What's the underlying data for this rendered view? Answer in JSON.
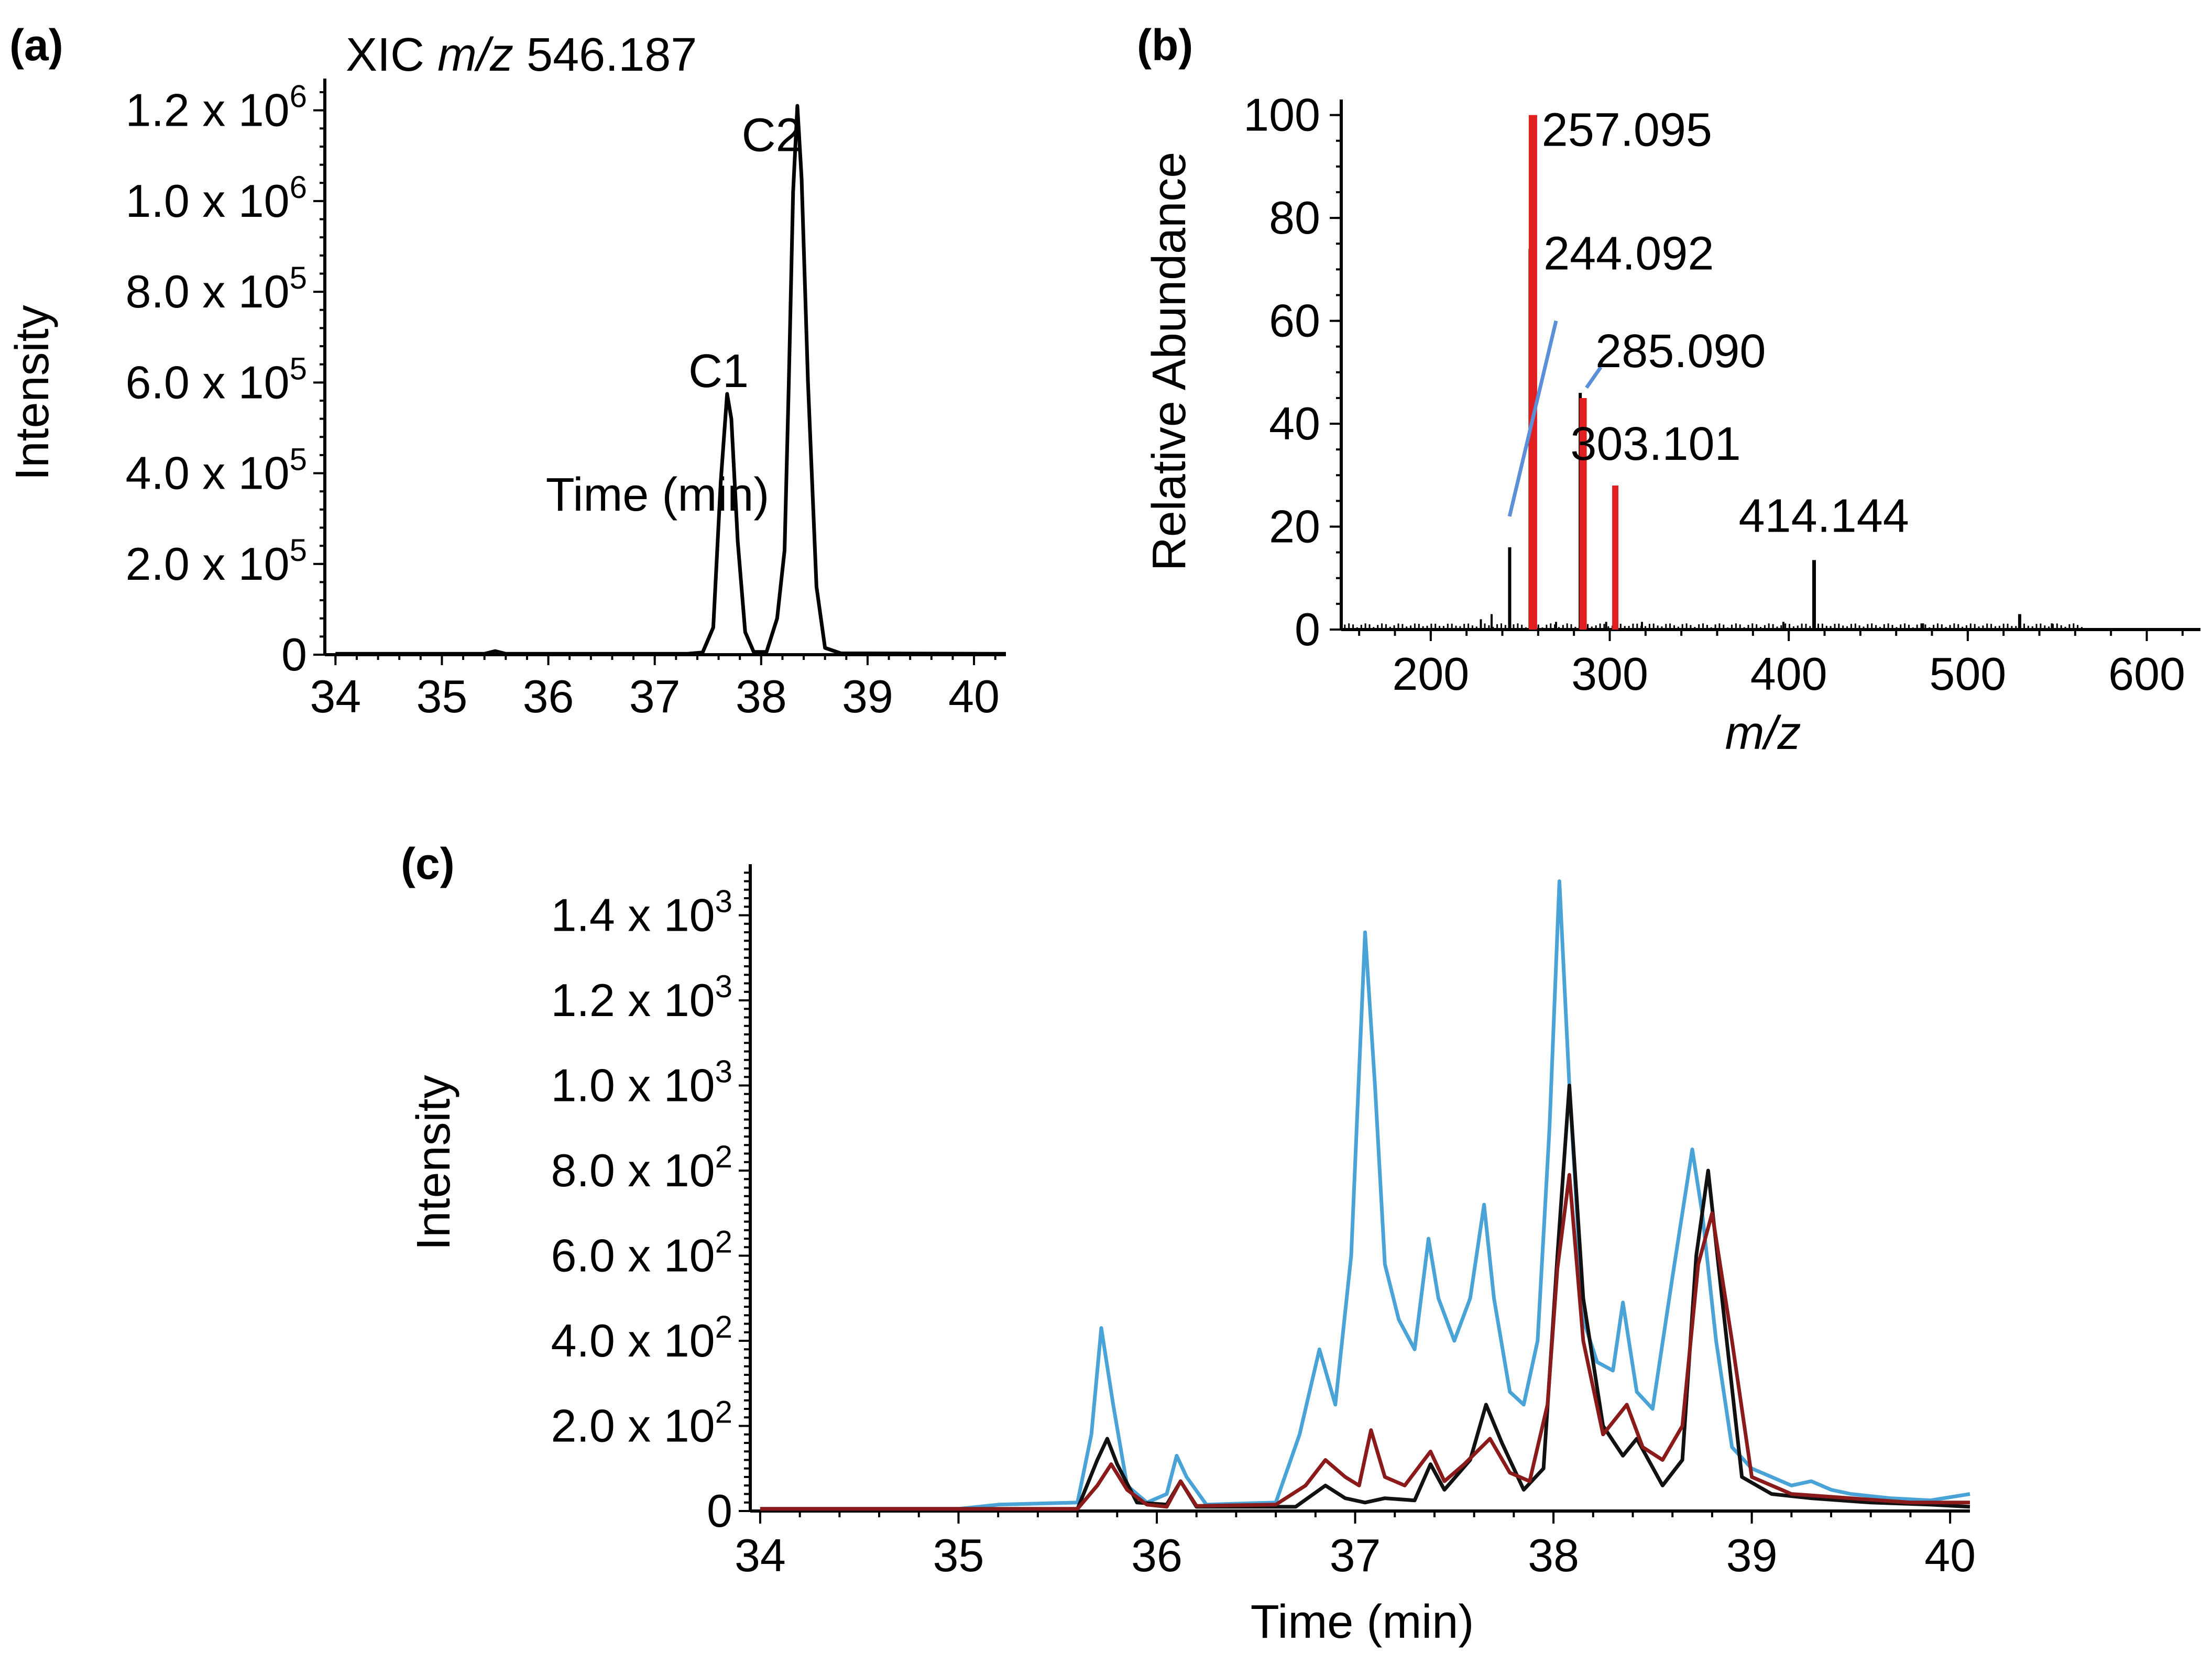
{
  "figure": {
    "colors": {
      "axis": "#000000",
      "red_peak": "#e02020",
      "blue_line": "#5b8fd8",
      "trace_blue": "#4aa3d6",
      "trace_black": "#111111",
      "trace_red": "#8b1a1a"
    }
  },
  "chart_data": [
    {
      "panel": "(a)",
      "type": "line",
      "title": "XIC m/z 546.187",
      "title_parts": {
        "prefix": "XIC ",
        "italic": "m/z",
        "suffix": " 546.187"
      },
      "xlabel": "Time (min)",
      "ylabel": "Intensity",
      "xlim": [
        33.9,
        40.3
      ],
      "ylim": [
        0,
        1270000
      ],
      "xticks": [
        34,
        35,
        36,
        37,
        38,
        39,
        40
      ],
      "yticks": [
        {
          "value": 0,
          "mant": "0",
          "exp": ""
        },
        {
          "value": 200000,
          "mant": "2.0 x 10",
          "exp": "5"
        },
        {
          "value": 400000,
          "mant": "4.0 x 10",
          "exp": "5"
        },
        {
          "value": 600000,
          "mant": "6.0 x 10",
          "exp": "5"
        },
        {
          "value": 800000,
          "mant": "8.0 x 10",
          "exp": "5"
        },
        {
          "value": 1000000,
          "mant": "1.0 x 10",
          "exp": "6"
        },
        {
          "value": 1200000,
          "mant": "1.2 x 10",
          "exp": "6"
        }
      ],
      "series": [
        {
          "name": "XIC",
          "color": "#000000",
          "x": [
            34.0,
            35.4,
            35.5,
            35.6,
            37.3,
            37.45,
            37.55,
            37.62,
            37.68,
            37.72,
            37.78,
            37.85,
            37.93,
            38.05,
            38.15,
            38.22,
            38.26,
            38.3,
            38.34,
            38.38,
            38.44,
            38.52,
            38.6,
            38.75,
            40.3
          ],
          "y": [
            2000,
            2000,
            8000,
            2000,
            2000,
            5000,
            60000,
            380000,
            575000,
            520000,
            250000,
            50000,
            6000,
            6000,
            80000,
            230000,
            600000,
            1020000,
            1210000,
            1050000,
            600000,
            150000,
            15000,
            3000,
            2000
          ]
        }
      ],
      "annotations": [
        {
          "text": "C1",
          "x": 37.6,
          "y": 590000
        },
        {
          "text": "C2",
          "x": 38.1,
          "y": 1110000
        }
      ]
    },
    {
      "panel": "(b)",
      "type": "bar",
      "xlabel": "m/z",
      "ylabel": "Relative Abundance",
      "xlim": [
        150,
        630
      ],
      "ylim": [
        0,
        102
      ],
      "xticks": [
        200,
        300,
        400,
        500,
        600
      ],
      "yticks": [
        0,
        20,
        40,
        60,
        80,
        100
      ],
      "peaks": [
        {
          "mz": 244.092,
          "intensity": 16,
          "color": "black",
          "width": 6
        },
        {
          "mz": 255.5,
          "intensity": 74,
          "color": "black",
          "width": 6
        },
        {
          "mz": 257.095,
          "intensity": 100,
          "color": "red",
          "width": 16
        },
        {
          "mz": 283.5,
          "intensity": 46,
          "color": "black",
          "width": 6
        },
        {
          "mz": 285.09,
          "intensity": 45,
          "color": "red",
          "width": 14
        },
        {
          "mz": 303.101,
          "intensity": 28,
          "color": "red",
          "width": 12
        },
        {
          "mz": 414.144,
          "intensity": 13.5,
          "color": "black",
          "width": 7
        },
        {
          "mz": 529,
          "intensity": 3,
          "color": "black",
          "width": 6
        },
        {
          "mz": 228,
          "intensity": 2,
          "color": "black",
          "width": 4
        },
        {
          "mz": 234,
          "intensity": 3,
          "color": "black",
          "width": 4
        },
        {
          "mz": 270,
          "intensity": 1.5,
          "color": "black",
          "width": 4
        },
        {
          "mz": 298,
          "intensity": 1.5,
          "color": "black",
          "width": 4
        },
        {
          "mz": 318,
          "intensity": 1.5,
          "color": "black",
          "width": 4
        },
        {
          "mz": 397,
          "intensity": 1.5,
          "color": "black",
          "width": 4
        },
        {
          "mz": 475,
          "intensity": 1.2,
          "color": "black",
          "width": 4
        },
        {
          "mz": 547,
          "intensity": 1.2,
          "color": "black",
          "width": 4
        }
      ],
      "labels": [
        {
          "text": "257.095",
          "mz": 262,
          "y": 94
        },
        {
          "text": "244.092",
          "mz": 263,
          "y": 70
        },
        {
          "text": "285.090",
          "mz": 292,
          "y": 51
        },
        {
          "text": "303.101",
          "mz": 278,
          "y": 33
        },
        {
          "text": "414.144",
          "mz": 372,
          "y": 19
        }
      ],
      "guide_lines": [
        {
          "from": [
            244,
            22
          ],
          "to": [
            270,
            60
          ]
        },
        {
          "from": [
            287,
            47
          ],
          "to": [
            295,
            51
          ]
        }
      ]
    },
    {
      "panel": "(c)",
      "type": "line",
      "xlabel": "Time (min)",
      "ylabel": "Intensity",
      "xlim": [
        33.95,
        40.1
      ],
      "ylim": [
        0,
        1520
      ],
      "xticks": [
        34,
        35,
        36,
        37,
        38,
        39,
        40
      ],
      "yticks": [
        {
          "value": 0,
          "mant": "0",
          "exp": ""
        },
        {
          "value": 200,
          "mant": "2.0 x 10",
          "exp": "2"
        },
        {
          "value": 400,
          "mant": "4.0 x 10",
          "exp": "2"
        },
        {
          "value": 600,
          "mant": "6.0 x 10",
          "exp": "2"
        },
        {
          "value": 800,
          "mant": "8.0 x 10",
          "exp": "2"
        },
        {
          "value": 1000,
          "mant": "1.0 x 10",
          "exp": "3"
        },
        {
          "value": 1200,
          "mant": "1.2 x 10",
          "exp": "3"
        },
        {
          "value": 1400,
          "mant": "1.4 x 10",
          "exp": "3"
        }
      ],
      "series": [
        {
          "name": "blue trace",
          "color": "#4aa3d6",
          "x": [
            34.0,
            35.0,
            35.2,
            35.6,
            35.67,
            35.72,
            35.78,
            35.85,
            35.95,
            36.05,
            36.1,
            36.15,
            36.25,
            36.6,
            36.72,
            36.82,
            36.9,
            36.98,
            37.05,
            37.1,
            37.15,
            37.22,
            37.3,
            37.37,
            37.42,
            37.5,
            37.58,
            37.65,
            37.7,
            37.78,
            37.85,
            37.92,
            37.98,
            38.03,
            38.08,
            38.15,
            38.22,
            38.3,
            38.35,
            38.42,
            38.5,
            38.6,
            38.7,
            38.75,
            38.82,
            38.9,
            39.0,
            39.1,
            39.2,
            39.3,
            39.4,
            39.5,
            39.7,
            39.9,
            40.1
          ],
          "y": [
            5,
            5,
            15,
            20,
            180,
            430,
            250,
            60,
            20,
            40,
            130,
            80,
            15,
            20,
            180,
            380,
            250,
            600,
            1360,
            1000,
            580,
            450,
            380,
            640,
            500,
            400,
            500,
            720,
            500,
            280,
            250,
            400,
            900,
            1480,
            1000,
            450,
            350,
            330,
            490,
            280,
            240,
            550,
            850,
            700,
            400,
            150,
            100,
            80,
            60,
            70,
            50,
            40,
            30,
            25,
            40
          ]
        },
        {
          "name": "black trace",
          "color": "#111111",
          "x": [
            34.0,
            35.6,
            35.7,
            35.75,
            35.8,
            35.9,
            36.05,
            36.12,
            36.2,
            36.7,
            36.85,
            36.95,
            37.05,
            37.15,
            37.3,
            37.38,
            37.45,
            37.58,
            37.66,
            37.74,
            37.85,
            37.95,
            38.02,
            38.08,
            38.15,
            38.25,
            38.35,
            38.42,
            38.55,
            38.65,
            38.72,
            38.78,
            38.85,
            38.95,
            39.1,
            39.3,
            39.6,
            39.9,
            40.1
          ],
          "y": [
            5,
            5,
            120,
            170,
            110,
            20,
            15,
            70,
            10,
            10,
            60,
            30,
            20,
            30,
            25,
            110,
            50,
            120,
            250,
            160,
            50,
            100,
            600,
            1000,
            500,
            200,
            130,
            170,
            60,
            120,
            600,
            800,
            500,
            80,
            40,
            30,
            20,
            15,
            10
          ]
        },
        {
          "name": "red trace",
          "color": "#8b1a1a",
          "x": [
            34.0,
            35.6,
            35.7,
            35.77,
            35.85,
            35.95,
            36.05,
            36.12,
            36.2,
            36.6,
            36.75,
            36.85,
            36.95,
            37.02,
            37.08,
            37.15,
            37.25,
            37.38,
            37.45,
            37.55,
            37.68,
            37.78,
            37.88,
            37.97,
            38.02,
            38.08,
            38.15,
            38.25,
            38.37,
            38.45,
            38.55,
            38.65,
            38.73,
            38.8,
            38.9,
            39.0,
            39.2,
            39.5,
            39.8,
            40.1
          ],
          "y": [
            5,
            5,
            60,
            110,
            50,
            15,
            10,
            70,
            12,
            15,
            60,
            120,
            80,
            60,
            190,
            80,
            60,
            140,
            70,
            110,
            170,
            90,
            70,
            250,
            570,
            790,
            400,
            180,
            250,
            150,
            120,
            200,
            580,
            700,
            400,
            80,
            40,
            30,
            20,
            20
          ]
        }
      ]
    }
  ]
}
